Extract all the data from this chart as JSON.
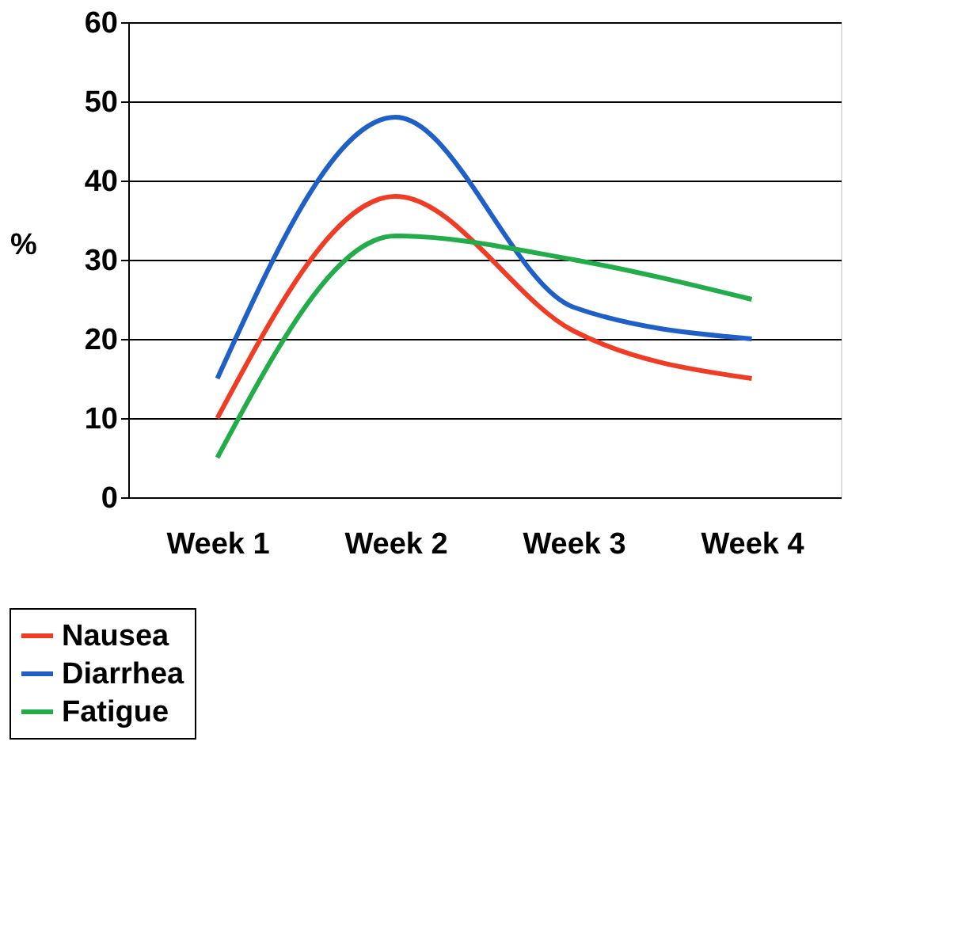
{
  "chart_data": {
    "type": "line",
    "ylabel": "%",
    "categories": [
      "Week 1",
      "Week 2",
      "Week 3",
      "Week 4"
    ],
    "series": [
      {
        "name": "Nausea",
        "color": "#f03c24",
        "values": [
          10,
          38,
          21,
          15
        ]
      },
      {
        "name": "Diarrhea",
        "color": "#1f5fc8",
        "values": [
          15,
          48,
          24,
          20
        ]
      },
      {
        "name": "Fatigue",
        "color": "#23ad4a",
        "values": [
          5,
          33,
          30,
          25
        ]
      }
    ],
    "ylim": [
      0,
      60
    ],
    "yticks": [
      0,
      10,
      20,
      30,
      40,
      50,
      60
    ],
    "grid": "y",
    "legend": "bottom left",
    "marker": "none",
    "line_style": "solid"
  }
}
